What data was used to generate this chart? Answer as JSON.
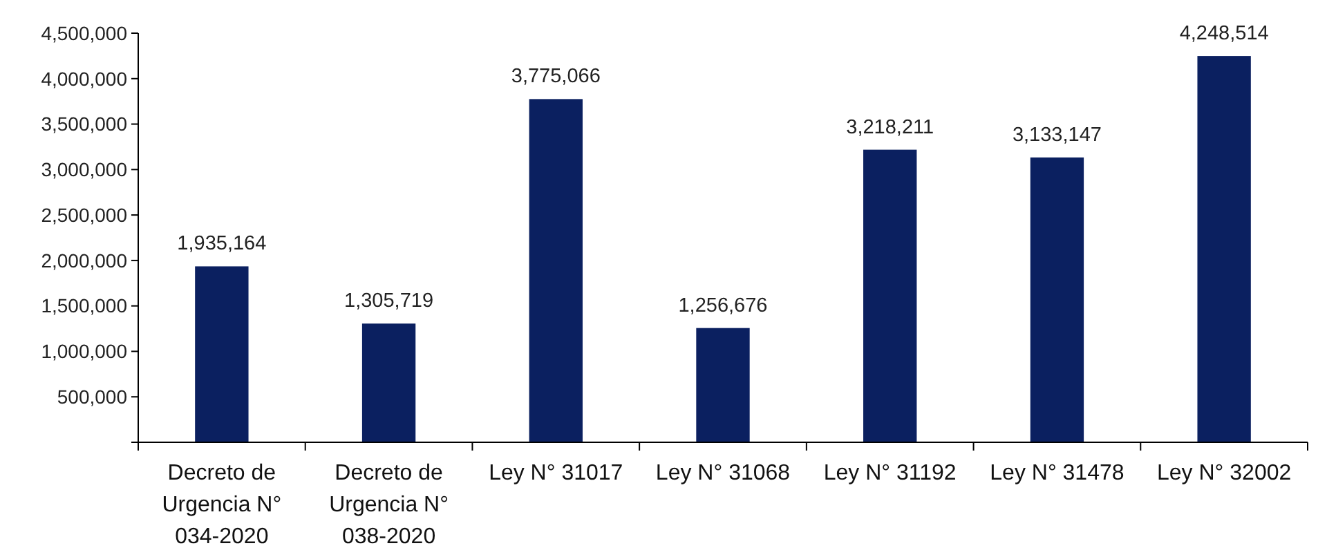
{
  "chart_data": {
    "type": "bar",
    "categories": [
      "Decreto de Urgencia N° 034-2020",
      "Decreto de Urgencia N° 038-2020",
      "Ley N° 31017",
      "Ley N° 31068",
      "Ley N° 31192",
      "Ley N° 31478",
      "Ley N° 32002"
    ],
    "values": [
      1935164,
      1305719,
      3775066,
      1256676,
      3218211,
      3133147,
      4248514
    ],
    "value_labels": [
      "1,935,164",
      "1,305,719",
      "3,775,066",
      "1,256,676",
      "3,218,211",
      "3,133,147",
      "4,248,514"
    ],
    "color": "#0b2060",
    "ylim": [
      0,
      4500000
    ],
    "yticks": [
      {
        "value": 0,
        "label": null
      },
      {
        "value": 500000,
        "label": "500,000"
      },
      {
        "value": 1000000,
        "label": "1,000,000"
      },
      {
        "value": 1500000,
        "label": "1,500,000"
      },
      {
        "value": 2000000,
        "label": "2,000,000"
      },
      {
        "value": 2500000,
        "label": "2,500,000"
      },
      {
        "value": 3000000,
        "label": "3,000,000"
      },
      {
        "value": 3500000,
        "label": "3,500,000"
      },
      {
        "value": 4000000,
        "label": "4,000,000"
      },
      {
        "value": 4500000,
        "label": "4,500,000"
      }
    ]
  }
}
